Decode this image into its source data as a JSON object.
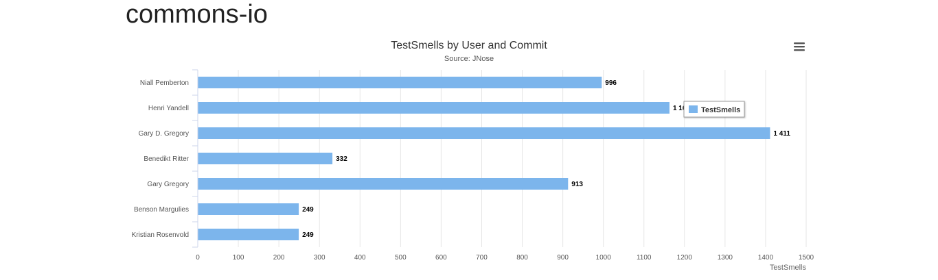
{
  "page": {
    "title": "commons-io"
  },
  "chart_data": {
    "type": "bar",
    "orientation": "horizontal",
    "title": "TestSmells by User and Commit",
    "subtitle": "Source: JNose",
    "xlabel": "TestSmells",
    "ylabel": "",
    "categories": [
      "Niall Pemberton",
      "Henri Yandell",
      "Gary D. Gregory",
      "Benedikt Ritter",
      "Gary Gregory",
      "Benson Margulies",
      "Kristian Rosenvold"
    ],
    "series": [
      {
        "name": "TestSmells",
        "values": [
          996,
          1163,
          1411,
          332,
          913,
          249,
          249
        ],
        "value_labels": [
          "996",
          "1 163",
          "1 411",
          "332",
          "913",
          "249",
          "249"
        ]
      }
    ],
    "value_axis": {
      "range": [
        0,
        1500
      ],
      "ticks": [
        0,
        100,
        200,
        300,
        400,
        500,
        600,
        700,
        800,
        900,
        1000,
        1100,
        1200,
        1300,
        1400,
        1500
      ]
    },
    "grid": true,
    "legend": {
      "placement": "right",
      "entries": [
        "TestSmells"
      ]
    },
    "colors": {
      "bar": "#7cb5ec",
      "grid": "#e6e6e6",
      "axis": "#ccd6eb"
    }
  },
  "menu": {
    "icon": "hamburger-menu-icon"
  }
}
